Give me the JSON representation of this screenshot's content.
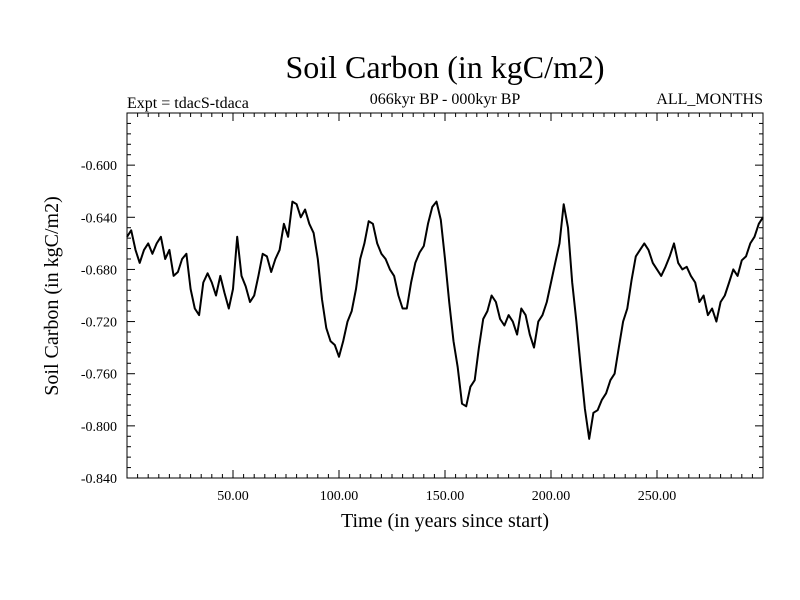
{
  "chart_data": {
    "type": "line",
    "title": "Soil Carbon (in kgC/m2)",
    "subtitle_left": "Expt = tdacS-tdaca",
    "subtitle_center": "066kyr BP - 000kyr BP",
    "subtitle_right": "ALL_MONTHS",
    "xlabel": "Time (in years since start)",
    "ylabel": "Soil Carbon (in kgC/m2)",
    "xlim": [
      0,
      300
    ],
    "ylim": [
      -0.84,
      -0.56
    ],
    "x_ticks": [
      50,
      100,
      150,
      200,
      250
    ],
    "x_tick_labels": [
      "50.00",
      "100.00",
      "150.00",
      "200.00",
      "250.00"
    ],
    "y_ticks": [
      -0.84,
      -0.8,
      -0.76,
      -0.72,
      -0.68,
      -0.64,
      -0.6
    ],
    "y_tick_labels": [
      "-0.840",
      "-0.800",
      "-0.760",
      "-0.720",
      "-0.680",
      "-0.640",
      "-0.600"
    ],
    "grid": false,
    "series": [
      {
        "name": "Soil Carbon",
        "x": [
          0,
          2,
          4,
          6,
          8,
          10,
          12,
          14,
          16,
          18,
          20,
          22,
          24,
          26,
          28,
          30,
          32,
          34,
          36,
          38,
          40,
          42,
          44,
          46,
          48,
          50,
          52,
          54,
          56,
          58,
          60,
          62,
          64,
          66,
          68,
          70,
          72,
          74,
          76,
          78,
          80,
          82,
          84,
          86,
          88,
          90,
          92,
          94,
          96,
          98,
          100,
          102,
          104,
          106,
          108,
          110,
          112,
          114,
          116,
          118,
          120,
          122,
          124,
          126,
          128,
          130,
          132,
          134,
          136,
          138,
          140,
          142,
          144,
          146,
          148,
          150,
          152,
          154,
          156,
          158,
          160,
          162,
          164,
          166,
          168,
          170,
          172,
          174,
          176,
          178,
          180,
          182,
          184,
          186,
          188,
          190,
          192,
          194,
          196,
          198,
          200,
          202,
          204,
          206,
          208,
          210,
          212,
          214,
          216,
          218,
          220,
          222,
          224,
          226,
          228,
          230,
          232,
          234,
          236,
          238,
          240,
          242,
          244,
          246,
          248,
          250,
          252,
          254,
          256,
          258,
          260,
          262,
          264,
          266,
          268,
          270,
          272,
          274,
          276,
          278,
          280,
          282,
          284,
          286,
          288,
          290,
          292,
          294,
          296,
          298,
          300
        ],
        "values": [
          -0.655,
          -0.65,
          -0.665,
          -0.675,
          -0.665,
          -0.66,
          -0.668,
          -0.66,
          -0.655,
          -0.672,
          -0.665,
          -0.685,
          -0.682,
          -0.672,
          -0.668,
          -0.695,
          -0.71,
          -0.715,
          -0.69,
          -0.683,
          -0.69,
          -0.7,
          -0.685,
          -0.698,
          -0.71,
          -0.695,
          -0.655,
          -0.685,
          -0.693,
          -0.705,
          -0.7,
          -0.685,
          -0.668,
          -0.67,
          -0.682,
          -0.672,
          -0.665,
          -0.645,
          -0.655,
          -0.628,
          -0.63,
          -0.64,
          -0.634,
          -0.645,
          -0.652,
          -0.672,
          -0.703,
          -0.725,
          -0.735,
          -0.738,
          -0.747,
          -0.735,
          -0.72,
          -0.712,
          -0.695,
          -0.672,
          -0.66,
          -0.643,
          -0.645,
          -0.66,
          -0.668,
          -0.672,
          -0.68,
          -0.685,
          -0.7,
          -0.71,
          -0.71,
          -0.69,
          -0.675,
          -0.667,
          -0.662,
          -0.645,
          -0.632,
          -0.628,
          -0.642,
          -0.672,
          -0.705,
          -0.735,
          -0.755,
          -0.783,
          -0.785,
          -0.77,
          -0.765,
          -0.74,
          -0.718,
          -0.712,
          -0.7,
          -0.705,
          -0.718,
          -0.723,
          -0.715,
          -0.72,
          -0.73,
          -0.71,
          -0.715,
          -0.73,
          -0.74,
          -0.72,
          -0.715,
          -0.705,
          -0.69,
          -0.675,
          -0.66,
          -0.63,
          -0.648,
          -0.69,
          -0.72,
          -0.755,
          -0.787,
          -0.81,
          -0.79,
          -0.788,
          -0.78,
          -0.775,
          -0.765,
          -0.76,
          -0.74,
          -0.72,
          -0.71,
          -0.688,
          -0.67,
          -0.665,
          -0.66,
          -0.665,
          -0.675,
          -0.68,
          -0.685,
          -0.678,
          -0.67,
          -0.66,
          -0.675,
          -0.68,
          -0.678,
          -0.685,
          -0.69,
          -0.705,
          -0.7,
          -0.715,
          -0.71,
          -0.72,
          -0.705,
          -0.7,
          -0.69,
          -0.68,
          -0.685,
          -0.673,
          -0.67,
          -0.66,
          -0.655,
          -0.645,
          -0.64
        ]
      }
    ]
  }
}
